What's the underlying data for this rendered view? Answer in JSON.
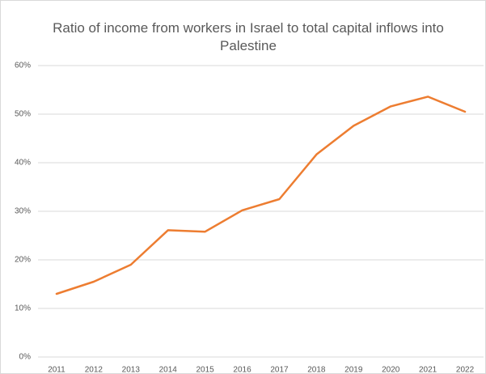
{
  "chart_data": {
    "type": "line",
    "title": "Ratio of income from workers in Israel to total capital inflows into Palestine",
    "categories": [
      "2011",
      "2012",
      "2013",
      "2014",
      "2015",
      "2016",
      "2017",
      "2018",
      "2019",
      "2020",
      "2021",
      "2022"
    ],
    "series": [
      {
        "name": "Ratio",
        "color": "#ed7d31",
        "values": [
          13,
          15.5,
          19,
          26.1,
          25.8,
          30.2,
          32.5,
          41.7,
          47.6,
          51.6,
          53.6,
          50.5
        ]
      }
    ],
    "ylim": [
      0,
      60
    ],
    "yticks": [
      {
        "value": 0,
        "label": "0%"
      },
      {
        "value": 10,
        "label": "10%"
      },
      {
        "value": 20,
        "label": "20%"
      },
      {
        "value": 30,
        "label": "30%"
      },
      {
        "value": 40,
        "label": "40%"
      },
      {
        "value": 50,
        "label": "50%"
      },
      {
        "value": 60,
        "label": "60%"
      }
    ],
    "grid": true
  }
}
